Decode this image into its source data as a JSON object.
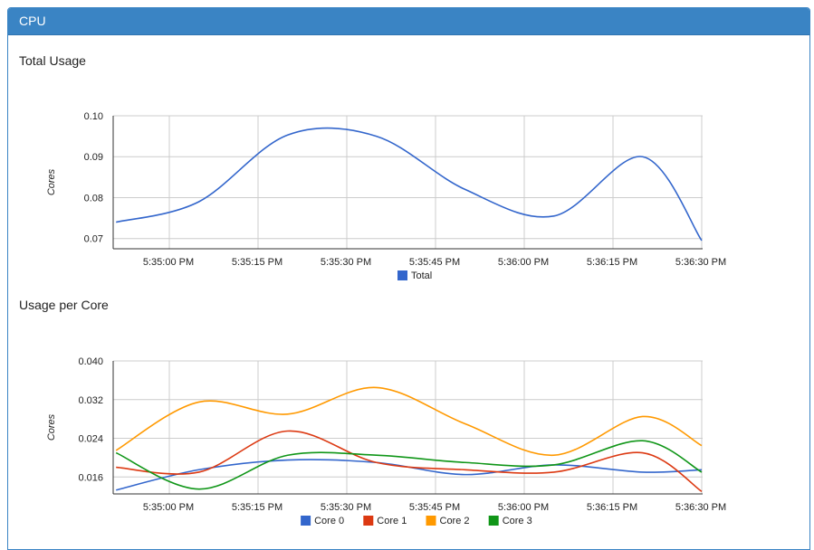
{
  "panel": {
    "title": "CPU"
  },
  "chart_data": [
    {
      "type": "line",
      "title": "Total Usage",
      "ylabel": "Cores",
      "ylim": [
        0.0675,
        0.1
      ],
      "yticks": [
        "0.10",
        "0.09",
        "0.08",
        "0.07"
      ],
      "ytick_values": [
        0.1,
        0.09,
        0.08,
        0.07
      ],
      "xticks": [
        "5:35:00 PM",
        "5:35:15 PM",
        "5:35:30 PM",
        "5:35:45 PM",
        "5:36:00 PM",
        "5:36:15 PM",
        "5:36:30 PM"
      ],
      "legend_position": "bottom",
      "x": [
        "5:34:51 PM",
        "5:35:05 PM",
        "5:35:20 PM",
        "5:35:35 PM",
        "5:35:50 PM",
        "5:36:05 PM",
        "5:36:20 PM",
        "5:36:30 PM"
      ],
      "series": [
        {
          "name": "Total",
          "color": "#3366cc",
          "values": [
            0.074,
            0.079,
            0.0953,
            0.095,
            0.082,
            0.0755,
            0.09,
            0.0695
          ]
        }
      ]
    },
    {
      "type": "line",
      "title": "Usage per Core",
      "ylabel": "Cores",
      "ylim": [
        0.0125,
        0.04
      ],
      "yticks": [
        "0.040",
        "0.032",
        "0.024",
        "0.016"
      ],
      "ytick_values": [
        0.04,
        0.032,
        0.024,
        0.016
      ],
      "xticks": [
        "5:35:00 PM",
        "5:35:15 PM",
        "5:35:30 PM",
        "5:35:45 PM",
        "5:36:00 PM",
        "5:36:15 PM",
        "5:36:30 PM"
      ],
      "legend_position": "bottom",
      "x": [
        "5:34:51 PM",
        "5:35:05 PM",
        "5:35:20 PM",
        "5:35:35 PM",
        "5:35:50 PM",
        "5:36:05 PM",
        "5:36:20 PM",
        "5:36:30 PM"
      ],
      "series": [
        {
          "name": "Core 0",
          "color": "#3366cc",
          "values": [
            0.0133,
            0.0175,
            0.0195,
            0.019,
            0.0165,
            0.0185,
            0.017,
            0.0175
          ]
        },
        {
          "name": "Core 1",
          "color": "#dc3912",
          "values": [
            0.018,
            0.017,
            0.0255,
            0.019,
            0.0175,
            0.017,
            0.021,
            0.013
          ]
        },
        {
          "name": "Core 2",
          "color": "#ff9900",
          "values": [
            0.0215,
            0.0315,
            0.029,
            0.0345,
            0.027,
            0.0205,
            0.0285,
            0.0225
          ]
        },
        {
          "name": "Core 3",
          "color": "#109618",
          "values": [
            0.021,
            0.0135,
            0.0205,
            0.0205,
            0.019,
            0.0185,
            0.0235,
            0.017
          ]
        }
      ]
    }
  ]
}
